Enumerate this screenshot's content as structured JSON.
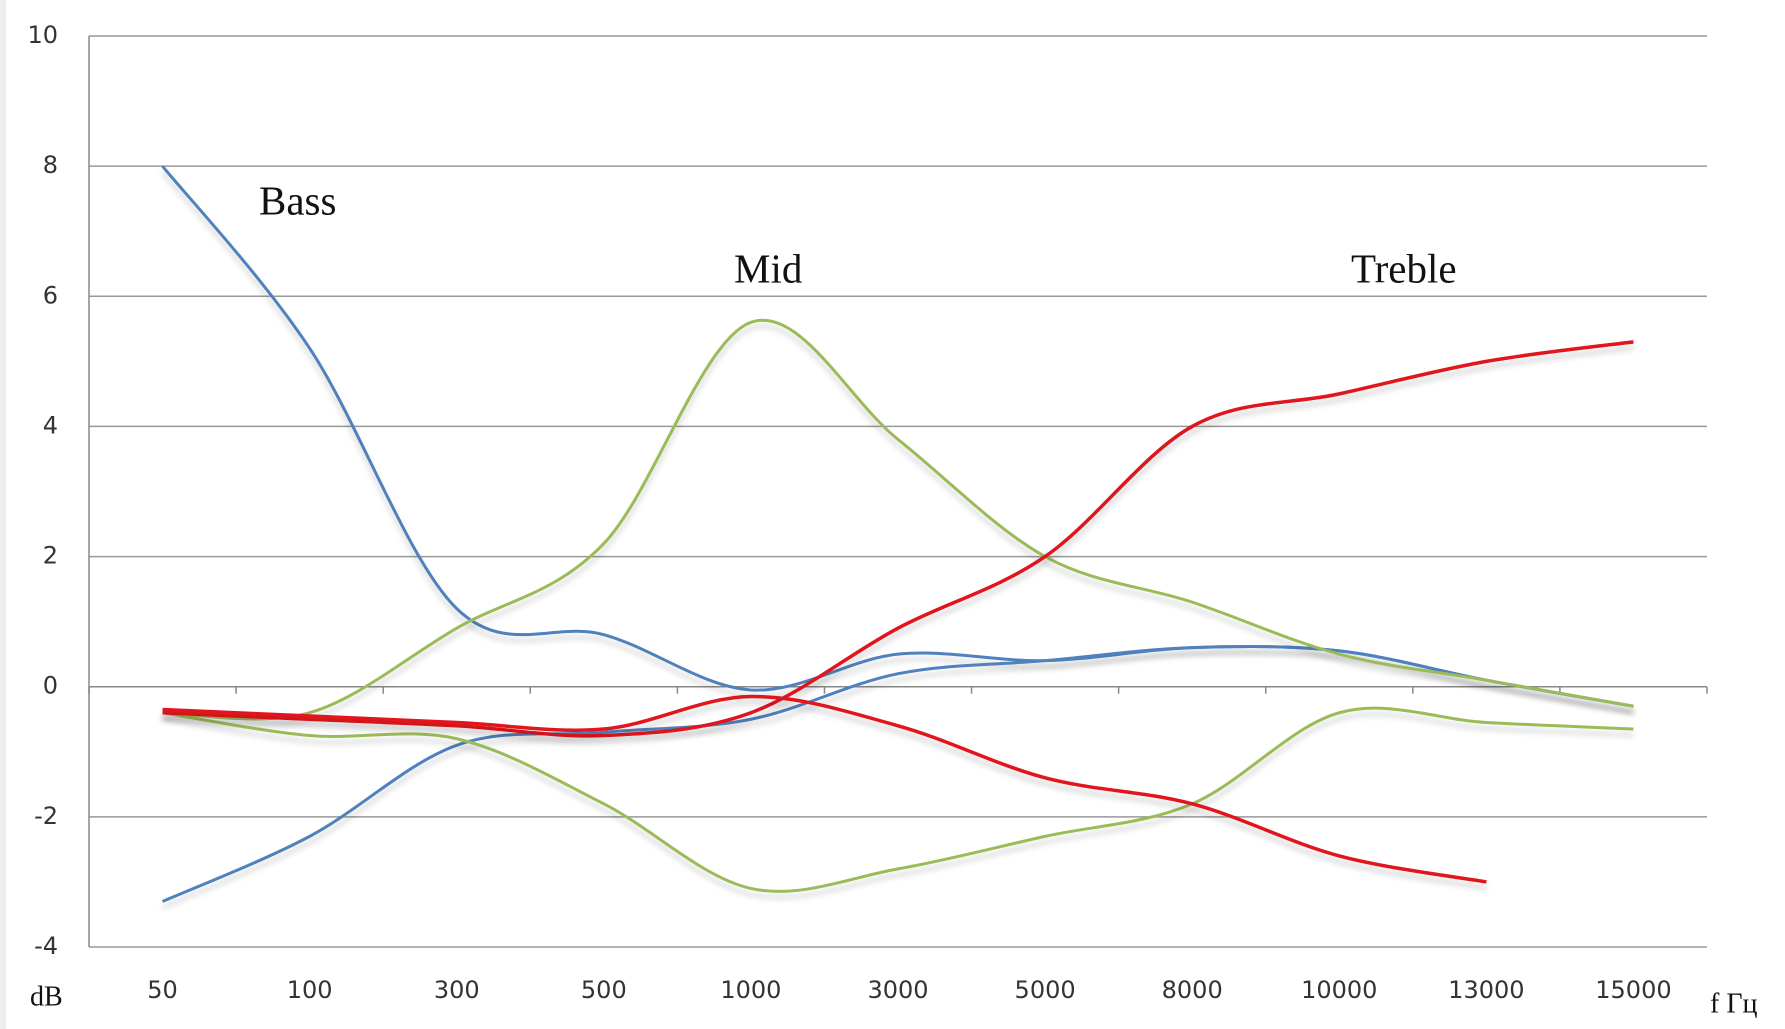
{
  "chart_data": {
    "type": "line",
    "categories": [
      "50",
      "100",
      "300",
      "500",
      "1000",
      "3000",
      "5000",
      "8000",
      "10000",
      "13000",
      "15000"
    ],
    "series": [
      {
        "color": "#4f81bd",
        "values": [
          8,
          5.2,
          1.2,
          0.8,
          -0.05,
          0.5,
          0.4,
          0.6,
          0.55,
          0.1,
          -0.3
        ]
      },
      {
        "color": "#4f81bd",
        "values": [
          -3.3,
          -2.3,
          -0.9,
          -0.7,
          -0.5,
          0.2,
          0.4,
          0.6,
          0.55,
          0.1,
          -0.3
        ]
      },
      {
        "color": "#9bbb59",
        "values": [
          -0.4,
          -0.4,
          0.9,
          2.2,
          5.6,
          3.8,
          2.0,
          1.3,
          0.5,
          0.1,
          -0.3
        ]
      },
      {
        "color": "#9bbb59",
        "values": [
          -0.4,
          -0.75,
          -0.8,
          -1.8,
          -3.1,
          -2.8,
          -2.3,
          -1.8,
          -0.4,
          -0.55,
          -0.65
        ]
      },
      {
        "color": "#e0121c",
        "values": [
          -0.4,
          -0.5,
          -0.6,
          -0.75,
          -0.4,
          0.9,
          2.0,
          4.0,
          4.5,
          5.0,
          5.3
        ]
      },
      {
        "color": "#e0121c",
        "values": [
          -0.35,
          -0.45,
          -0.55,
          -0.65,
          -0.15,
          -0.6,
          -1.4,
          -1.8,
          -2.6,
          -3.0,
          null
        ]
      }
    ],
    "annotations": [
      "Bass",
      "Mid",
      "Treble"
    ],
    "ylabel": "dB",
    "xlabel": "f Гц",
    "ylim": [
      -4,
      10
    ],
    "yticks": [
      -4,
      -2,
      0,
      2,
      4,
      6,
      8,
      10
    ],
    "grid": true
  }
}
